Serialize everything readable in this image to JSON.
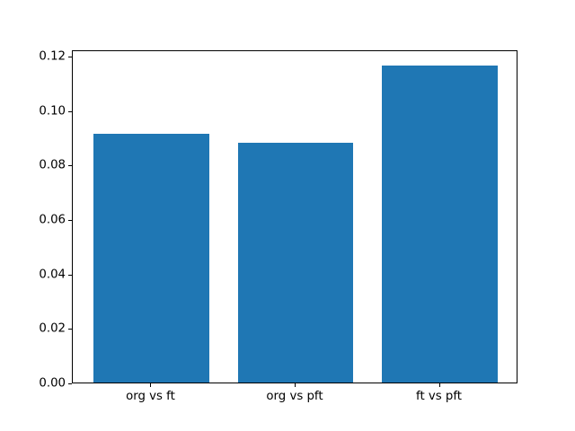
{
  "chart_data": {
    "type": "bar",
    "categories": [
      "org vs ft",
      "org vs pft",
      "ft vs pft"
    ],
    "values": [
      0.0914,
      0.0881,
      0.1164
    ],
    "title": "",
    "xlabel": "",
    "ylabel": "",
    "ylim": [
      0,
      0.1223
    ],
    "xlim": [
      -0.545,
      2.545
    ],
    "yticks": [
      0.0,
      0.02,
      0.04,
      0.06,
      0.08,
      0.1,
      0.12
    ],
    "ytick_labels": [
      "0.00",
      "0.02",
      "0.04",
      "0.06",
      "0.08",
      "0.10",
      "0.12"
    ],
    "bar_width_fraction": 0.8,
    "grid": false,
    "legend_position": "none",
    "colors": {
      "bar": "#1f77b4",
      "spine": "#000000",
      "text": "#000000",
      "background": "#ffffff"
    }
  }
}
